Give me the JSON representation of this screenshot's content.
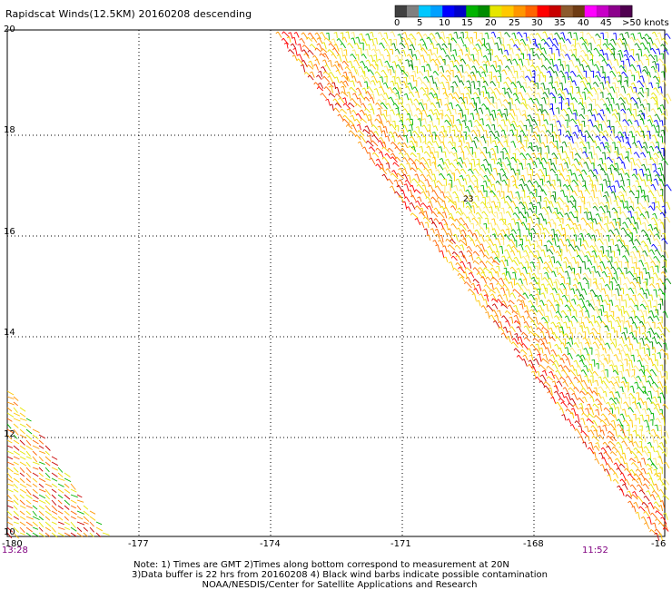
{
  "title": "Rapidscat Winds(12.5KM) 20160208 descending",
  "legend": {
    "unit_label": ">50 knots",
    "bins": [
      {
        "label": "0",
        "color": "#404040"
      },
      {
        "label": "5",
        "color": "#808080"
      },
      {
        "label": "",
        "color": "#00c8ff"
      },
      {
        "label": "10",
        "color": "#00a0ff"
      },
      {
        "label": "",
        "color": "#0000ff"
      },
      {
        "label": "15",
        "color": "#0000c8"
      },
      {
        "label": "",
        "color": "#00b400"
      },
      {
        "label": "20",
        "color": "#008c00"
      },
      {
        "label": "",
        "color": "#e6e600"
      },
      {
        "label": "25",
        "color": "#ffc800"
      },
      {
        "label": "",
        "color": "#ff9600"
      },
      {
        "label": "30",
        "color": "#ff6400"
      },
      {
        "label": "",
        "color": "#ff0000"
      },
      {
        "label": "35",
        "color": "#c80000"
      },
      {
        "label": "",
        "color": "#8c5a2d"
      },
      {
        "label": "40",
        "color": "#6e3c14"
      },
      {
        "label": "",
        "color": "#ff00ff"
      },
      {
        "label": "45",
        "color": "#c800c8"
      },
      {
        "label": "",
        "color": "#8c008c"
      },
      {
        "label": "",
        "color": "#500050"
      }
    ]
  },
  "axes": {
    "latitudes": [
      "20",
      "18",
      "16",
      "14",
      "12",
      "10"
    ],
    "longitudes": [
      "-180",
      "-177",
      "-174",
      "-171",
      "-168",
      "-16"
    ]
  },
  "times": {
    "left": "13:28",
    "right": "11:52"
  },
  "swath_label": "23",
  "notes": [
    "Note: 1) Times are GMT 2)Times along bottom correspond to measurement at 20N",
    "3)Data buffer is 22 hrs from 20160208 4) Black wind barbs indicate possible contamination",
    "NOAA/NESDIS/Center for Satellite Applications and Research"
  ]
}
